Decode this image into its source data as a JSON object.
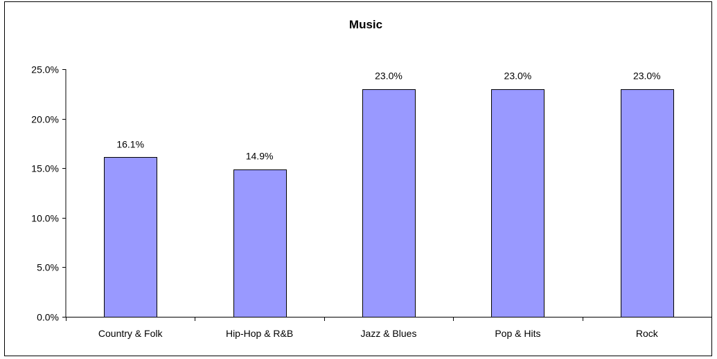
{
  "chart_data": {
    "type": "bar",
    "title": "Music",
    "xlabel": "",
    "ylabel": "",
    "categories": [
      "Country & Folk",
      "Hip-Hop & R&B",
      "Jazz & Blues",
      "Pop & Hits",
      "Rock"
    ],
    "values": [
      16.1,
      14.9,
      23.0,
      23.0,
      23.0
    ],
    "data_labels": [
      "16.1%",
      "14.9%",
      "23.0%",
      "23.0%",
      "23.0%"
    ],
    "ylim": [
      0,
      25
    ],
    "y_ticks": [
      0,
      5,
      10,
      15,
      20,
      25
    ],
    "y_tick_labels": [
      "0.0%",
      "5.0%",
      "10.0%",
      "15.0%",
      "20.0%",
      "25.0%"
    ],
    "grid": false,
    "legend": "none",
    "colors": {
      "bar_fill": "#9999ff",
      "bar_stroke": "#000000",
      "axis": "#000000"
    }
  }
}
